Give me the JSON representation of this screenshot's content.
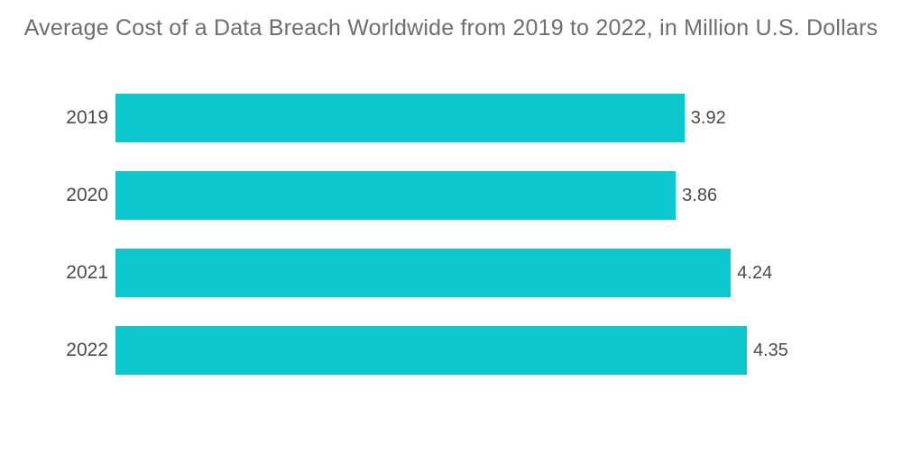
{
  "page": {
    "background": "#ffffff"
  },
  "chart_data": {
    "type": "bar",
    "orientation": "horizontal",
    "title": "Average Cost of a Data Breach Worldwide from 2019 to 2022, in Million U.S. Dollars",
    "categories": [
      "2019",
      "2020",
      "2021",
      "2022"
    ],
    "values": [
      3.92,
      3.86,
      4.24,
      4.35
    ],
    "xlim": [
      0,
      4.35
    ],
    "xlabel": "",
    "ylabel": "",
    "grid": false,
    "legend": false,
    "data_labels_shown": true,
    "bar_color": "#0cc8ce",
    "title_color": "#6e6e6e",
    "label_color": "#4b4b4b"
  }
}
